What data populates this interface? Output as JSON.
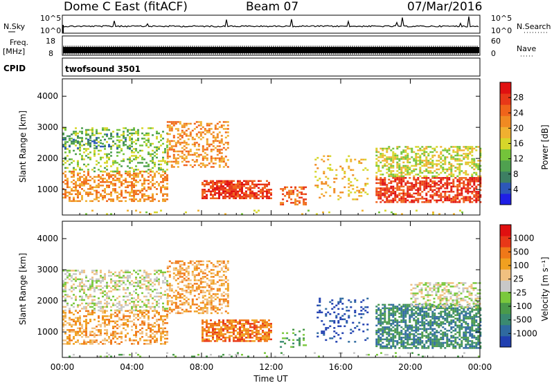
{
  "header": {
    "station": "Dome C East (fitACF)",
    "beam": "Beam 07",
    "date": "07/Mar/2016"
  },
  "top_panels": {
    "nsky_label": "N.Sky",
    "nsky_ticks": [
      "10^5",
      "10^0"
    ],
    "nsearch_label": "N.Search",
    "nsearch_ticks": [
      "10^5",
      "10^0"
    ],
    "freq_label": "Freq.",
    "freq_unit": "[MHz]",
    "freq_ticks": [
      "18",
      "8"
    ],
    "nave_label": "Nave",
    "nave_ticks": [
      "60",
      "0"
    ],
    "cpid_label": "CPID",
    "cpid_value": "twofsound 3501"
  },
  "chart_data": [
    {
      "type": "heatmap",
      "panel": "power",
      "xlabel": "",
      "ylabel": "Slant Range [km]",
      "x_ticks": [
        "00:00",
        "04:00",
        "08:00",
        "12:00",
        "16:00",
        "20:00",
        "00:00"
      ],
      "xlim_hours": [
        0,
        24
      ],
      "y_ticks": [
        1000,
        2000,
        3000,
        4000
      ],
      "ylim": [
        180,
        4560
      ],
      "colorbar": {
        "label": "Power [dB]",
        "ticks": [
          "4",
          "8",
          "12",
          "16",
          "20",
          "24",
          "28"
        ],
        "colors": [
          "#1f1fe6",
          "#2d57b8",
          "#3d7f63",
          "#4fa14f",
          "#74c43a",
          "#d6d62a",
          "#f0b030",
          "#f08a22",
          "#f0641a",
          "#e83818",
          "#e01010"
        ]
      },
      "scatter_bands": [
        {
          "x": [
            0.0,
            6.0
          ],
          "y": [
            600,
            1600
          ],
          "level": 7,
          "density": 0.45
        },
        {
          "x": [
            0.0,
            6.0
          ],
          "y": [
            1600,
            3000
          ],
          "level": 4,
          "density": 0.3
        },
        {
          "x": [
            0.0,
            4.0
          ],
          "y": [
            2300,
            2800
          ],
          "level": 2,
          "density": 0.2
        },
        {
          "x": [
            6.0,
            9.5
          ],
          "y": [
            1700,
            3200
          ],
          "level": 7,
          "density": 0.4
        },
        {
          "x": [
            8.0,
            12.0
          ],
          "y": [
            700,
            1300
          ],
          "level": 9,
          "density": 0.75
        },
        {
          "x": [
            12.5,
            14.0
          ],
          "y": [
            500,
            1100
          ],
          "level": 8,
          "density": 0.35
        },
        {
          "x": [
            14.5,
            17.5
          ],
          "y": [
            700,
            2100
          ],
          "level": 6,
          "density": 0.15
        },
        {
          "x": [
            18.0,
            24.0
          ],
          "y": [
            600,
            1400
          ],
          "level": 9,
          "density": 0.65
        },
        {
          "x": [
            18.0,
            24.0
          ],
          "y": [
            1400,
            2400
          ],
          "level": 5,
          "density": 0.5
        },
        {
          "x": [
            0.0,
            24.0
          ],
          "y": [
            200,
            350
          ],
          "level": 5,
          "density": 0.08
        }
      ]
    },
    {
      "type": "heatmap",
      "panel": "velocity",
      "xlabel": "Time UT",
      "ylabel": "Slant Range [km]",
      "x_ticks": [
        "00:00",
        "04:00",
        "08:00",
        "12:00",
        "16:00",
        "20:00",
        "00:00"
      ],
      "xlim_hours": [
        0,
        24
      ],
      "y_ticks": [
        1000,
        2000,
        3000,
        4000
      ],
      "ylim": [
        180,
        4560
      ],
      "colorbar": {
        "label": "Velocity [m s⁻¹]",
        "ticks": [
          "1000",
          "500",
          "100",
          "25",
          "-25",
          "-100",
          "-500",
          "-1000"
        ],
        "colors": [
          "#2040b0",
          "#2f6aa0",
          "#3a8a70",
          "#4a9a4a",
          "#7ac83c",
          "#c8c8c8",
          "#f0c080",
          "#f0a020",
          "#f07818",
          "#e83818",
          "#e01010"
        ]
      },
      "scatter_bands": [
        {
          "x": [
            0.0,
            6.0
          ],
          "y": [
            1700,
            3000
          ],
          "level": 5,
          "density": 0.4
        },
        {
          "x": [
            0.0,
            6.0
          ],
          "y": [
            600,
            1700
          ],
          "level": 7,
          "density": 0.45
        },
        {
          "x": [
            6.0,
            9.5
          ],
          "y": [
            1600,
            3300
          ],
          "level": 7,
          "density": 0.45
        },
        {
          "x": [
            8.0,
            12.0
          ],
          "y": [
            700,
            1400
          ],
          "level": 8,
          "density": 0.7
        },
        {
          "x": [
            12.5,
            14.0
          ],
          "y": [
            500,
            1100
          ],
          "level": 3,
          "density": 0.25
        },
        {
          "x": [
            14.5,
            17.5
          ],
          "y": [
            700,
            2100
          ],
          "level": 0,
          "density": 0.15
        },
        {
          "x": [
            18.0,
            24.0
          ],
          "y": [
            500,
            1900
          ],
          "level": 2,
          "density": 0.65
        },
        {
          "x": [
            20.0,
            24.0
          ],
          "y": [
            1800,
            2600
          ],
          "level": 5,
          "density": 0.45
        },
        {
          "x": [
            0.0,
            24.0
          ],
          "y": [
            200,
            350
          ],
          "level": 4,
          "density": 0.08
        }
      ]
    }
  ]
}
